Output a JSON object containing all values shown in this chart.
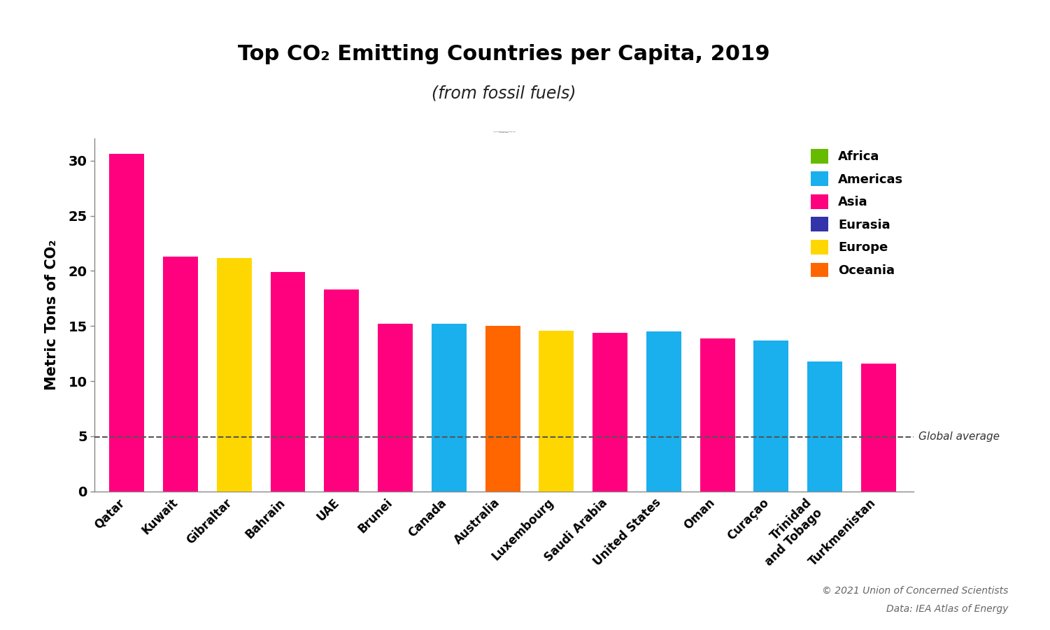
{
  "title": "Top CO₂ Emitting Countries per Capita, 2019",
  "subtitle": "(from fossil fuels)",
  "ylabel": "Metric Tons of CO₂",
  "categories": [
    "Qatar",
    "Kuwait",
    "Gibraltar",
    "Bahrain",
    "UAE",
    "Brunei",
    "Canada",
    "Australia",
    "Luxembourg",
    "Saudi Arabia",
    "United States",
    "Oman",
    "Curaçao",
    "Trinidad\nand Tobago",
    "Turkmenistan"
  ],
  "values": [
    30.6,
    21.3,
    21.2,
    19.9,
    18.3,
    15.2,
    15.2,
    15.0,
    14.6,
    14.4,
    14.5,
    13.9,
    13.7,
    11.8,
    11.6
  ],
  "colors": [
    "#FF007F",
    "#FF007F",
    "#FFD700",
    "#FF007F",
    "#FF007F",
    "#FF007F",
    "#1AAFED",
    "#FF6600",
    "#FFD700",
    "#FF007F",
    "#1AAFED",
    "#FF007F",
    "#1AAFED",
    "#1AAFED",
    "#FF007F"
  ],
  "legend_entries": [
    {
      "label": "Africa",
      "color": "#66BB00"
    },
    {
      "label": "Americas",
      "color": "#1AAFED"
    },
    {
      "label": "Asia",
      "color": "#FF007F"
    },
    {
      "label": "Eurasia",
      "color": "#3333AA"
    },
    {
      "label": "Europe",
      "color": "#FFD700"
    },
    {
      "label": "Oceania",
      "color": "#FF6600"
    }
  ],
  "global_avg": 4.95,
  "global_avg_label": "Global average",
  "ylim": [
    0,
    32
  ],
  "yticks": [
    0,
    5,
    10,
    15,
    20,
    25,
    30
  ],
  "background_color": "#FFFFFF",
  "copyright_line1": "© 2021 Union of Concerned Scientists",
  "copyright_line2": "Data: IEA Atlas of Energy"
}
